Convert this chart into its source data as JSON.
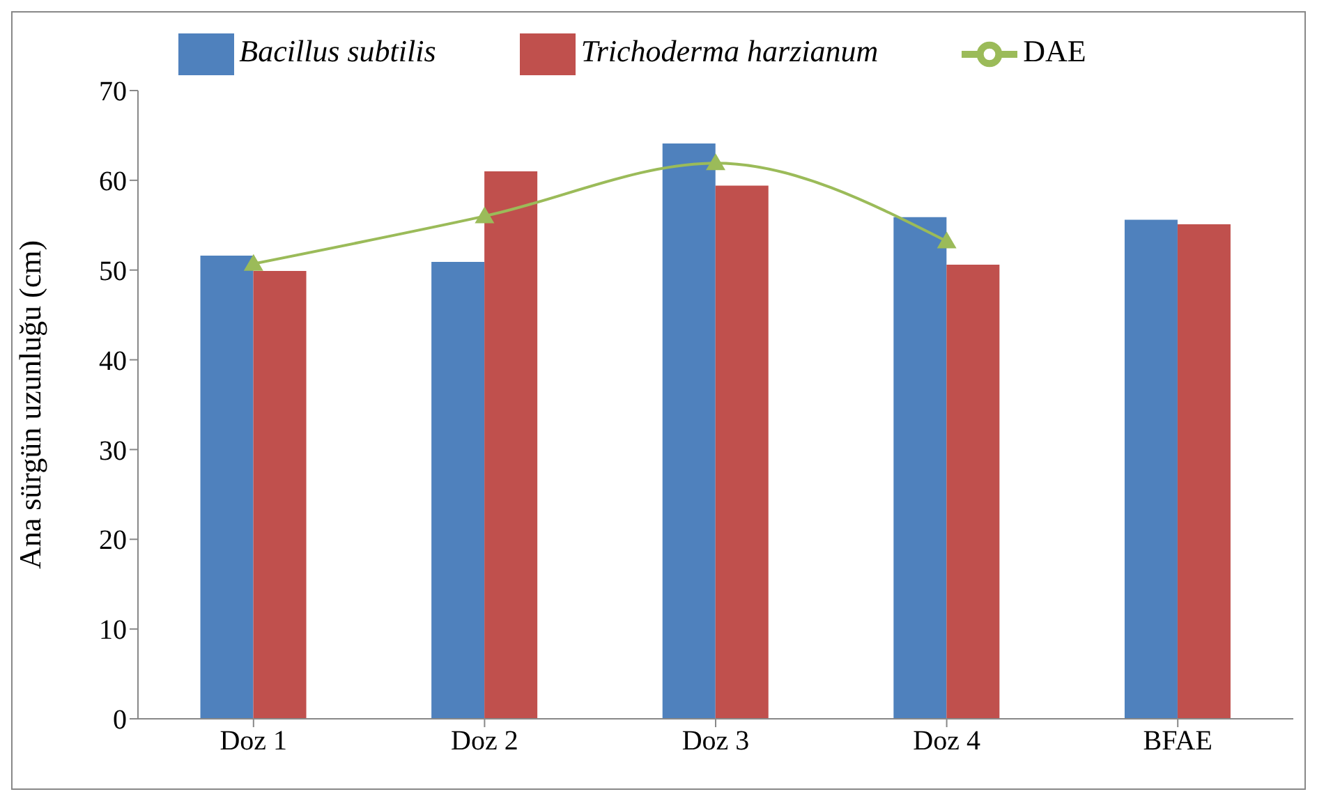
{
  "chart_data": {
    "type": "bar",
    "ylabel": "Ana sürgün uzunluğu (cm)",
    "categories": [
      "Doz 1",
      "Doz 2",
      "Doz 3",
      "Doz 4",
      "BFAE"
    ],
    "series": [
      {
        "name": "Bacillus subtilis",
        "color": "#4f81bd",
        "values": [
          51.6,
          50.9,
          64.1,
          55.9,
          55.6
        ]
      },
      {
        "name": "Trichoderma harzianum",
        "color": "#c0504d",
        "values": [
          49.9,
          61.0,
          59.4,
          50.6,
          55.1
        ]
      },
      {
        "name": "DAE",
        "type": "line",
        "color": "#9bbb59",
        "marker": "triangle",
        "values": [
          50.7,
          56.0,
          61.9,
          53.2,
          null
        ]
      }
    ],
    "ylim": [
      0,
      70
    ],
    "yticks": [
      0,
      10,
      20,
      30,
      40,
      50,
      60,
      70
    ],
    "grid": false,
    "legend": "top"
  }
}
